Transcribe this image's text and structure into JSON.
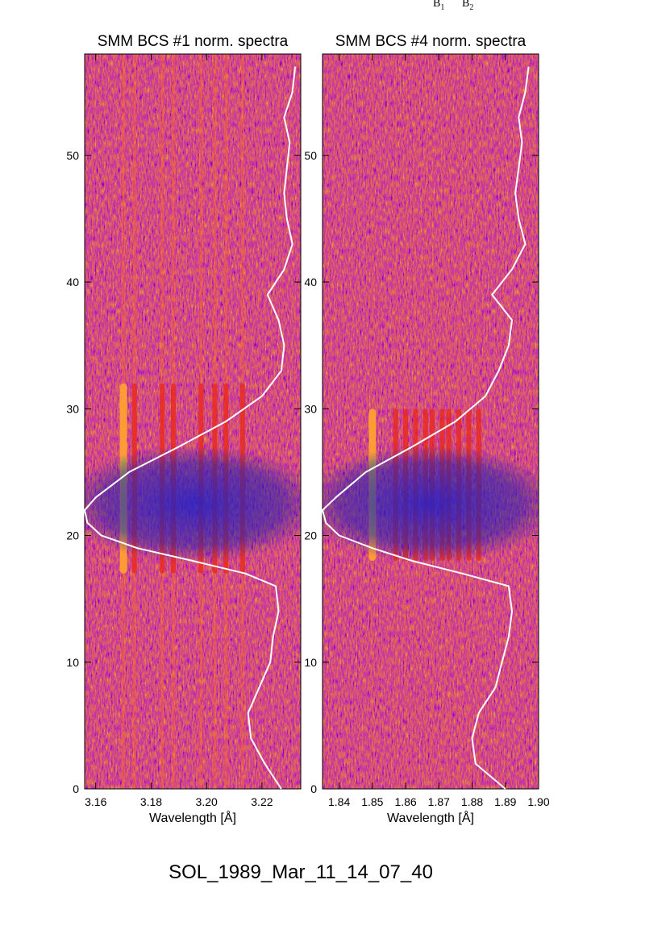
{
  "top_labels": [
    "B",
    "B"
  ],
  "top_subscripts": [
    "1",
    "2"
  ],
  "caption": "SOL_1989_Mar_11_14_07_40",
  "colors": {
    "background": "#1a1aa6",
    "line": "#ffffff",
    "hot": "#ff7a1a",
    "warm": "#c81e28",
    "dark": "#000000"
  },
  "chart_data": [
    {
      "type": "heatmap",
      "title": "SMM BCS #1 norm. spectra",
      "xlabel": "Wavelength [Å]",
      "ylabel": "",
      "xlim": [
        3.156,
        3.234
      ],
      "ylim": [
        0,
        58
      ],
      "xticks": [
        3.16,
        3.18,
        3.2,
        3.22
      ],
      "xtick_labels": [
        "3.16",
        "3.18",
        "3.20",
        "3.22"
      ],
      "yticks": [
        0,
        10,
        20,
        30,
        40,
        50
      ],
      "ytick_labels": [
        "0",
        "10",
        "20",
        "30",
        "40",
        "50"
      ],
      "emission_lines_A": [
        3.17,
        3.174,
        3.184,
        3.188,
        3.198,
        3.203,
        3.207,
        3.213
      ],
      "light_curve": {
        "note": "white overlay curve, x in Å, y in spectrum index",
        "points": [
          [
            3.227,
            0
          ],
          [
            3.221,
            2
          ],
          [
            3.216,
            4
          ],
          [
            3.215,
            6
          ],
          [
            3.219,
            8
          ],
          [
            3.223,
            10
          ],
          [
            3.224,
            12
          ],
          [
            3.226,
            14
          ],
          [
            3.225,
            16
          ],
          [
            3.214,
            17
          ],
          [
            3.195,
            18
          ],
          [
            3.175,
            19
          ],
          [
            3.162,
            20
          ],
          [
            3.157,
            21
          ],
          [
            3.156,
            22
          ],
          [
            3.16,
            23
          ],
          [
            3.172,
            25
          ],
          [
            3.19,
            27
          ],
          [
            3.207,
            29
          ],
          [
            3.22,
            31
          ],
          [
            3.227,
            33
          ],
          [
            3.228,
            35
          ],
          [
            3.226,
            37
          ],
          [
            3.222,
            39
          ],
          [
            3.228,
            41
          ],
          [
            3.231,
            43
          ],
          [
            3.229,
            45
          ],
          [
            3.228,
            47
          ],
          [
            3.229,
            49
          ],
          [
            3.23,
            51
          ],
          [
            3.228,
            53
          ],
          [
            3.231,
            55
          ],
          [
            3.232,
            57
          ]
        ]
      }
    },
    {
      "type": "heatmap",
      "title": "SMM BCS #4 norm. spectra",
      "xlabel": "Wavelength [Å]",
      "ylabel": "",
      "xlim": [
        1.835,
        1.9
      ],
      "ylim": [
        0,
        58
      ],
      "xticks": [
        1.84,
        1.85,
        1.86,
        1.87,
        1.88,
        1.89,
        1.9
      ],
      "xtick_labels": [
        "1.84",
        "1.85",
        "1.86",
        "1.87",
        "1.88",
        "1.89",
        "1.90"
      ],
      "yticks": [
        0,
        10,
        20,
        30,
        40,
        50
      ],
      "ytick_labels": [
        "0",
        "10",
        "20",
        "30",
        "40",
        "50"
      ],
      "emission_lines_A": [
        1.85,
        1.857,
        1.86,
        1.863,
        1.866,
        1.868,
        1.871,
        1.873,
        1.876,
        1.879,
        1.882
      ],
      "light_curve": {
        "note": "white overlay curve, x in Å, y in spectrum index",
        "points": [
          [
            1.89,
            0
          ],
          [
            1.881,
            2
          ],
          [
            1.88,
            4
          ],
          [
            1.882,
            6
          ],
          [
            1.887,
            8
          ],
          [
            1.889,
            10
          ],
          [
            1.891,
            12
          ],
          [
            1.892,
            14
          ],
          [
            1.891,
            16
          ],
          [
            1.877,
            17
          ],
          [
            1.862,
            18
          ],
          [
            1.85,
            19
          ],
          [
            1.84,
            20
          ],
          [
            1.836,
            21
          ],
          [
            1.835,
            22
          ],
          [
            1.839,
            23
          ],
          [
            1.848,
            25
          ],
          [
            1.862,
            27
          ],
          [
            1.875,
            29
          ],
          [
            1.884,
            31
          ],
          [
            1.888,
            33
          ],
          [
            1.891,
            35
          ],
          [
            1.892,
            37
          ],
          [
            1.886,
            39
          ],
          [
            1.892,
            41
          ],
          [
            1.896,
            43
          ],
          [
            1.894,
            45
          ],
          [
            1.893,
            47
          ],
          [
            1.894,
            49
          ],
          [
            1.895,
            51
          ],
          [
            1.894,
            53
          ],
          [
            1.896,
            55
          ],
          [
            1.897,
            57
          ]
        ]
      }
    }
  ]
}
